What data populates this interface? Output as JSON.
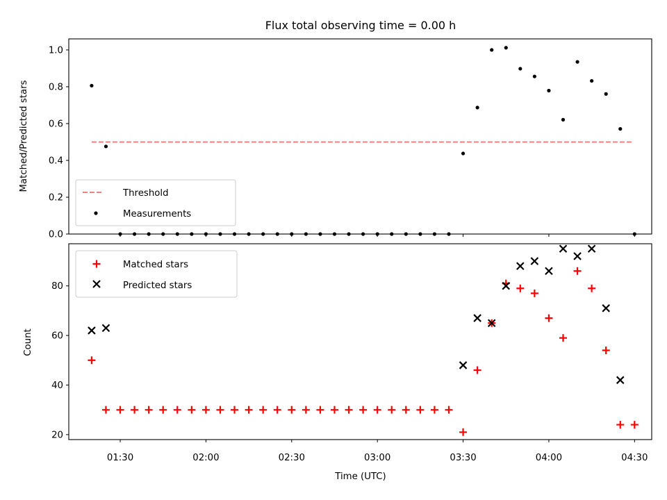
{
  "chart_data": [
    {
      "type": "scatter",
      "title": "Flux total observing time = 0.00 h",
      "xlabel": "",
      "ylabel": "Matched/Predicted stars",
      "ylim": [
        0.0,
        1.06
      ],
      "yticks": [
        "0.0",
        "0.2",
        "0.4",
        "0.6",
        "0.8",
        "1.0"
      ],
      "xlim": [
        "01:12",
        "04:36"
      ],
      "legend": "lower-left",
      "threshold": {
        "name": "Threshold",
        "color": "#f08080",
        "style": "dashed",
        "y": 0.5,
        "x": [
          "01:20",
          "04:29"
        ]
      },
      "series": [
        {
          "name": "Measurements",
          "color": "#000000",
          "marker": "dot",
          "x": [
            "01:20",
            "01:25",
            "01:30",
            "01:35",
            "01:40",
            "01:45",
            "01:50",
            "01:55",
            "02:00",
            "02:05",
            "02:10",
            "02:15",
            "02:20",
            "02:25",
            "02:30",
            "02:35",
            "02:40",
            "02:45",
            "02:50",
            "02:55",
            "03:00",
            "03:05",
            "03:10",
            "03:15",
            "03:20",
            "03:25",
            "03:30",
            "03:35",
            "03:40",
            "03:45",
            "03:50",
            "03:55",
            "04:00",
            "04:05",
            "04:10",
            "04:15",
            "04:20",
            "04:25",
            "04:30"
          ],
          "y": [
            0.806,
            0.476,
            0.0,
            0.0,
            0.0,
            0.0,
            0.0,
            0.0,
            0.0,
            0.0,
            0.0,
            0.0,
            0.0,
            0.0,
            0.0,
            0.0,
            0.0,
            0.0,
            0.0,
            0.0,
            0.0,
            0.0,
            0.0,
            0.0,
            0.0,
            0.0,
            0.4375,
            0.687,
            1.0,
            1.012,
            0.898,
            0.856,
            0.779,
            0.621,
            0.935,
            0.832,
            0.761,
            0.571,
            0.0
          ]
        }
      ]
    },
    {
      "type": "scatter",
      "xlabel": "Time (UTC)",
      "ylabel": "Count",
      "ylim": [
        18,
        97
      ],
      "yticks": [
        "20",
        "40",
        "60",
        "80"
      ],
      "xticks": [
        "01:30",
        "02:00",
        "02:30",
        "03:00",
        "03:30",
        "04:00",
        "04:30"
      ],
      "xlim": [
        "01:12",
        "04:36"
      ],
      "legend": "top-left",
      "series": [
        {
          "name": "Matched stars",
          "color": "#ff0000",
          "marker": "plus",
          "x": [
            "01:20",
            "01:25",
            "01:30",
            "01:35",
            "01:40",
            "01:45",
            "01:50",
            "01:55",
            "02:00",
            "02:05",
            "02:10",
            "02:15",
            "02:20",
            "02:25",
            "02:30",
            "02:35",
            "02:40",
            "02:45",
            "02:50",
            "02:55",
            "03:00",
            "03:05",
            "03:10",
            "03:15",
            "03:20",
            "03:25",
            "03:30",
            "03:35",
            "03:40",
            "03:45",
            "03:50",
            "03:55",
            "04:00",
            "04:05",
            "04:10",
            "04:15",
            "04:20",
            "04:25",
            "04:30"
          ],
          "y": [
            50,
            30,
            30,
            30,
            30,
            30,
            30,
            30,
            30,
            30,
            30,
            30,
            30,
            30,
            30,
            30,
            30,
            30,
            30,
            30,
            30,
            30,
            30,
            30,
            30,
            30,
            21,
            46,
            65,
            81,
            79,
            77,
            67,
            59,
            86,
            79,
            54,
            24,
            24
          ]
        },
        {
          "name": "Predicted stars",
          "color": "#000000",
          "marker": "x",
          "x": [
            "01:20",
            "01:25",
            "03:30",
            "03:35",
            "03:40",
            "03:45",
            "03:50",
            "03:55",
            "04:00",
            "04:05",
            "04:10",
            "04:15",
            "04:20",
            "04:25"
          ],
          "y": [
            62,
            63,
            48,
            67,
            65,
            80,
            88,
            90,
            86,
            95,
            92,
            95,
            71,
            42
          ]
        }
      ]
    }
  ]
}
